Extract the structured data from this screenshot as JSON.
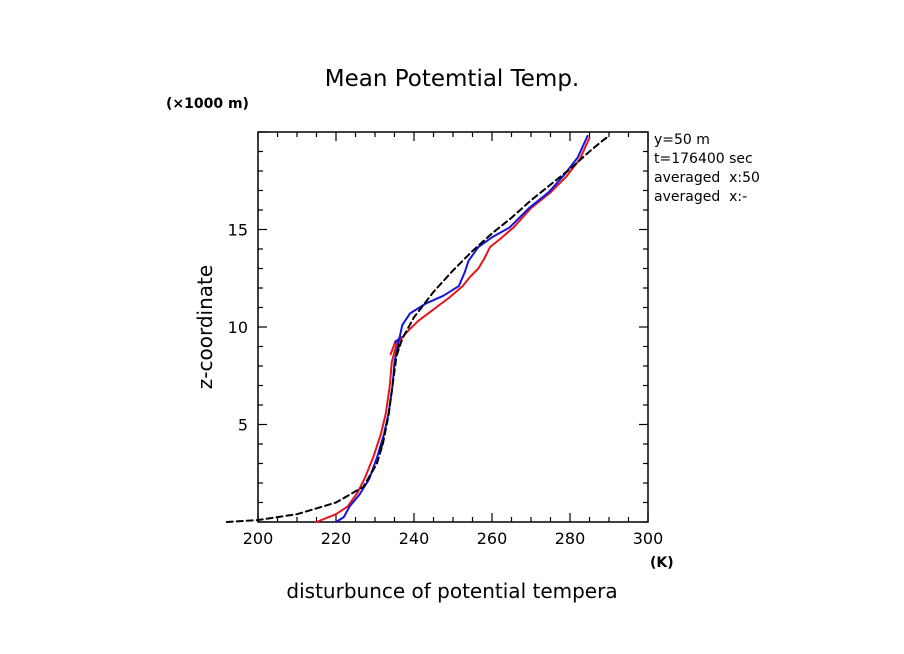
{
  "chart_data": {
    "type": "line",
    "title": "Mean Potemtial Temp.",
    "xlabel": "disturbunce of potential tempera",
    "xunit": "(K)",
    "ylabel": "z-coordinate",
    "yunit": "(×1000 m)",
    "xlim": [
      200,
      300
    ],
    "ylim": [
      0,
      20
    ],
    "xticks": [
      200,
      220,
      240,
      260,
      280,
      300
    ],
    "yticks": [
      5,
      10,
      15
    ],
    "grid": false,
    "annotations": [
      "y=50 m",
      "t=176400 sec",
      "averaged  x:50",
      "averaged  x:-"
    ],
    "colors": {
      "red": "#e8141c",
      "blue": "#1414e0",
      "black": "#000000"
    },
    "series": [
      {
        "color": "red",
        "style": "solid",
        "points": [
          [
            215,
            0
          ],
          [
            220,
            0.4
          ],
          [
            223,
            0.8
          ],
          [
            225.5,
            1.5
          ],
          [
            227.5,
            2.3
          ],
          [
            229.5,
            3.3
          ],
          [
            231.5,
            4.5
          ],
          [
            232.8,
            5.6
          ],
          [
            233.8,
            7
          ],
          [
            234.3,
            8.2
          ],
          [
            235.5,
            9.1
          ],
          [
            238,
            9.7
          ],
          [
            241,
            10.3
          ],
          [
            245,
            10.9
          ],
          [
            249,
            11.5
          ],
          [
            252.5,
            12.1
          ],
          [
            254.5,
            12.6
          ],
          [
            256.5,
            13
          ],
          [
            258,
            13.5
          ],
          [
            259.5,
            14.1
          ],
          [
            262,
            14.5
          ],
          [
            265.5,
            15.1
          ],
          [
            270,
            16.1
          ],
          [
            275,
            16.9
          ],
          [
            279,
            17.7
          ],
          [
            282.5,
            18.6
          ],
          [
            285,
            19.7
          ]
        ]
      },
      {
        "color": "blue",
        "style": "solid",
        "points": [
          [
            220,
            0
          ],
          [
            222,
            0.25
          ],
          [
            223.5,
            0.8
          ],
          [
            226,
            1.4
          ],
          [
            228.5,
            2.2
          ],
          [
            230.5,
            3.3
          ],
          [
            232.3,
            4.5
          ],
          [
            233.5,
            5.6
          ],
          [
            234.5,
            7
          ],
          [
            235,
            8.2
          ],
          [
            236,
            9.2
          ],
          [
            237,
            10.1
          ],
          [
            239,
            10.7
          ],
          [
            243,
            11.2
          ],
          [
            247.5,
            11.6
          ],
          [
            251.5,
            12.1
          ],
          [
            253,
            12.8
          ],
          [
            254,
            13.4
          ],
          [
            256.5,
            14.1
          ],
          [
            260,
            14.6
          ],
          [
            264.5,
            15.1
          ],
          [
            269.5,
            16.1
          ],
          [
            274.5,
            16.9
          ],
          [
            278.5,
            17.8
          ],
          [
            282,
            18.7
          ],
          [
            284.5,
            19.8
          ]
        ]
      },
      {
        "color": "black",
        "style": "dashed",
        "points": [
          [
            192,
            0
          ],
          [
            200,
            0.1
          ],
          [
            210,
            0.4
          ],
          [
            220,
            1
          ],
          [
            227,
            1.8
          ],
          [
            230.5,
            3
          ],
          [
            232,
            4
          ],
          [
            233.5,
            5.5
          ],
          [
            234.5,
            7
          ],
          [
            235.5,
            8.5
          ],
          [
            237,
            9.4
          ],
          [
            240,
            10.5
          ],
          [
            245,
            11.8
          ],
          [
            250,
            12.9
          ],
          [
            255,
            13.9
          ],
          [
            260,
            14.8
          ],
          [
            265,
            15.6
          ],
          [
            270,
            16.5
          ],
          [
            275,
            17.3
          ],
          [
            280,
            18.1
          ],
          [
            285,
            19
          ],
          [
            288,
            19.5
          ],
          [
            290,
            19.8
          ]
        ]
      },
      {
        "color": "red",
        "style": "tick",
        "points": [
          [
            234,
            8.6
          ],
          [
            235.3,
            9.3
          ]
        ]
      },
      {
        "color": "blue",
        "style": "tick",
        "points": [
          [
            235.2,
            9.2
          ],
          [
            236.6,
            9.5
          ]
        ]
      },
      {
        "color": "black",
        "style": "tick",
        "points": [
          [
            232,
            4.1
          ],
          [
            231.3,
            3.6
          ]
        ]
      },
      {
        "color": "black",
        "style": "tick",
        "points": [
          [
            236.2,
            9.1
          ],
          [
            235.6,
            8.6
          ]
        ]
      }
    ]
  }
}
